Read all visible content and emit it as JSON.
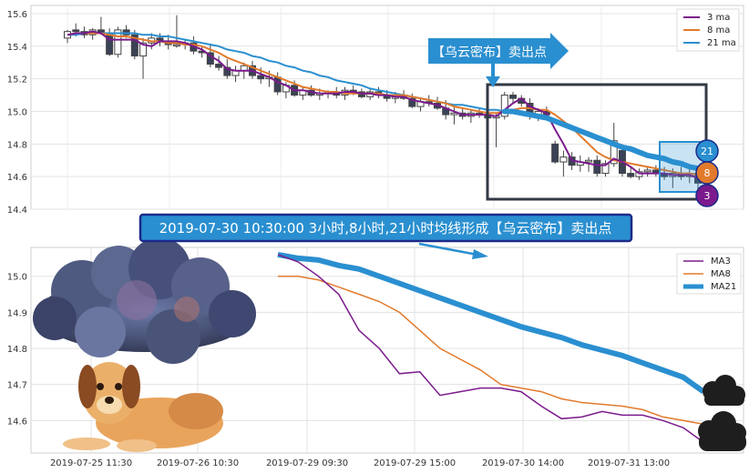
{
  "top_annotation": "【乌云密布】卖出点",
  "middle_banner": "2019-07-30 10:30:00 3小时,8小时,21小时均线形成【乌云密布】卖出点",
  "badges": [
    "21",
    "8",
    "3"
  ],
  "colors": {
    "ma3": "#7b1a8c",
    "ma8": "#e27a2c",
    "ma21": "#2a8fd0",
    "candle_down": "#3a4256",
    "banner_bg": "#2a8fd0",
    "banner_border": "#1b2a8a",
    "box": "#333a44"
  },
  "icons": [
    "dark-cloud-illustration",
    "dog-illustration",
    "small-black-cloud-icon",
    "small-black-cloud-icon"
  ],
  "chart_data": [
    {
      "type": "candlestick",
      "ylim": [
        14.4,
        15.65
      ],
      "yticks": [
        14.4,
        14.6,
        14.8,
        15.0,
        15.2,
        15.4,
        15.6
      ],
      "grid": true,
      "legend_position": "top-right",
      "legend": [
        "3 ma",
        "8 ma",
        "21 ma"
      ],
      "ohlc": [
        [
          15.45,
          15.5,
          15.42,
          15.49
        ],
        [
          15.5,
          15.54,
          15.46,
          15.49
        ],
        [
          15.49,
          15.52,
          15.45,
          15.47
        ],
        [
          15.47,
          15.51,
          15.44,
          15.5
        ],
        [
          15.5,
          15.58,
          15.47,
          15.48
        ],
        [
          15.48,
          15.51,
          15.34,
          15.35
        ],
        [
          15.35,
          15.52,
          15.33,
          15.5
        ],
        [
          15.5,
          15.53,
          15.45,
          15.47
        ],
        [
          15.47,
          15.5,
          15.32,
          15.34
        ],
        [
          15.34,
          15.45,
          15.2,
          15.42
        ],
        [
          15.42,
          15.48,
          15.38,
          15.45
        ],
        [
          15.45,
          15.48,
          15.4,
          15.43
        ],
        [
          15.43,
          15.47,
          15.38,
          15.41
        ],
        [
          15.41,
          15.59,
          15.39,
          15.41
        ],
        [
          15.41,
          15.44,
          15.38,
          15.42
        ],
        [
          15.42,
          15.46,
          15.35,
          15.37
        ],
        [
          15.37,
          15.4,
          15.33,
          15.36
        ],
        [
          15.36,
          15.41,
          15.27,
          15.29
        ],
        [
          15.29,
          15.34,
          15.25,
          15.27
        ],
        [
          15.27,
          15.32,
          15.2,
          15.22
        ],
        [
          15.22,
          15.28,
          15.18,
          15.25
        ],
        [
          15.25,
          15.3,
          15.2,
          15.28
        ],
        [
          15.28,
          15.31,
          15.2,
          15.22
        ],
        [
          15.22,
          15.27,
          15.17,
          15.2
        ],
        [
          15.2,
          15.25,
          15.15,
          15.21
        ],
        [
          15.21,
          15.24,
          15.1,
          15.12
        ],
        [
          15.12,
          15.18,
          15.08,
          15.16
        ],
        [
          15.16,
          15.19,
          15.09,
          15.1
        ],
        [
          15.1,
          15.15,
          15.07,
          15.13
        ],
        [
          15.13,
          15.16,
          15.09,
          15.1
        ],
        [
          15.1,
          15.14,
          15.07,
          15.11
        ],
        [
          15.11,
          15.13,
          15.08,
          15.12
        ],
        [
          15.12,
          15.15,
          15.08,
          15.1
        ],
        [
          15.1,
          15.15,
          15.07,
          15.13
        ],
        [
          15.13,
          15.16,
          15.1,
          15.12
        ],
        [
          15.12,
          15.14,
          15.08,
          15.09
        ],
        [
          15.09,
          15.14,
          15.07,
          15.12
        ],
        [
          15.12,
          15.15,
          15.08,
          15.1
        ],
        [
          15.1,
          15.13,
          15.06,
          15.08
        ],
        [
          15.08,
          15.12,
          15.05,
          15.1
        ],
        [
          15.1,
          15.13,
          15.07,
          15.08
        ],
        [
          15.08,
          15.11,
          15.02,
          15.03
        ],
        [
          15.03,
          15.08,
          15.0,
          15.06
        ],
        [
          15.06,
          15.1,
          15.03,
          15.05
        ],
        [
          15.05,
          15.09,
          15.01,
          15.02
        ],
        [
          15.02,
          15.07,
          14.95,
          14.98
        ],
        [
          14.98,
          15.03,
          14.92,
          14.99
        ],
        [
          14.99,
          15.02,
          14.95,
          14.97
        ],
        [
          14.97,
          15.01,
          14.93,
          14.99
        ],
        [
          14.99,
          15.02,
          14.96,
          14.98
        ],
        [
          14.98,
          15.0,
          14.94,
          14.96
        ],
        [
          14.96,
          14.99,
          14.78,
          14.97
        ],
        [
          14.97,
          15.12,
          14.95,
          15.1
        ],
        [
          15.1,
          15.12,
          15.05,
          15.08
        ],
        [
          15.08,
          15.1,
          15.03,
          15.05
        ],
        [
          15.05,
          15.08,
          14.95,
          14.97
        ],
        [
          14.97,
          15.02,
          14.94,
          15.0
        ],
        [
          15.0,
          15.03,
          14.96,
          14.98
        ],
        [
          14.8,
          14.82,
          14.68,
          14.69
        ],
        [
          14.69,
          14.76,
          14.6,
          14.72
        ],
        [
          14.72,
          14.75,
          14.64,
          14.67
        ],
        [
          14.67,
          14.73,
          14.63,
          14.69
        ],
        [
          14.69,
          14.72,
          14.63,
          14.7
        ],
        [
          14.7,
          14.73,
          14.6,
          14.62
        ],
        [
          14.62,
          14.7,
          14.6,
          14.68
        ],
        [
          14.68,
          14.93,
          14.66,
          14.82
        ],
        [
          14.76,
          14.8,
          14.6,
          14.62
        ],
        [
          14.62,
          14.66,
          14.59,
          14.6
        ],
        [
          14.6,
          14.65,
          14.58,
          14.63
        ],
        [
          14.63,
          14.66,
          14.6,
          14.64
        ],
        [
          14.64,
          14.67,
          14.6,
          14.62
        ],
        [
          14.62,
          14.66,
          14.58,
          14.6
        ],
        [
          14.6,
          14.65,
          14.53,
          14.62
        ],
        [
          14.62,
          14.66,
          14.58,
          14.6
        ],
        [
          14.6,
          14.66,
          14.56,
          14.62
        ],
        [
          14.62,
          14.64,
          14.52,
          14.56
        ]
      ],
      "ma3": [
        15.47,
        15.48,
        15.48,
        15.49,
        15.48,
        15.44,
        15.44,
        15.44,
        15.44,
        15.41,
        15.4,
        15.43,
        15.43,
        15.43,
        15.42,
        15.4,
        15.38,
        15.34,
        15.31,
        15.26,
        15.25,
        15.25,
        15.25,
        15.23,
        15.21,
        15.18,
        15.16,
        15.13,
        15.13,
        15.12,
        15.11,
        15.11,
        15.11,
        15.12,
        15.12,
        15.11,
        15.11,
        15.1,
        15.1,
        15.09,
        15.09,
        15.07,
        15.06,
        15.05,
        15.04,
        15.02,
        15.0,
        14.98,
        14.98,
        14.98,
        14.98,
        14.97,
        15.01,
        15.05,
        15.08,
        15.03,
        15.01,
        14.99,
        14.89,
        14.8,
        14.7,
        14.69,
        14.68,
        14.67,
        14.67,
        14.71,
        14.69,
        14.66,
        14.62,
        14.62,
        14.62,
        14.62,
        14.61,
        14.61,
        14.61,
        14.59
      ],
      "ma8": [
        15.47,
        15.48,
        15.48,
        15.48,
        15.48,
        15.47,
        15.46,
        15.46,
        15.45,
        15.44,
        15.43,
        15.43,
        15.42,
        15.42,
        15.41,
        15.41,
        15.4,
        15.38,
        15.36,
        15.33,
        15.31,
        15.29,
        15.27,
        15.25,
        15.23,
        15.21,
        15.19,
        15.17,
        15.15,
        15.14,
        15.13,
        15.12,
        15.12,
        15.11,
        15.11,
        15.11,
        15.11,
        15.11,
        15.1,
        15.1,
        15.1,
        15.09,
        15.08,
        15.07,
        15.06,
        15.05,
        15.03,
        15.02,
        15.01,
        15.0,
        14.99,
        14.99,
        15.0,
        15.01,
        15.02,
        15.02,
        15.01,
        15.01,
        14.98,
        14.94,
        14.9,
        14.85,
        14.8,
        14.75,
        14.72,
        14.7,
        14.69,
        14.68,
        14.67,
        14.66,
        14.65,
        14.64,
        14.63,
        14.62,
        14.62,
        14.61
      ],
      "ma21": [
        15.47,
        15.47,
        15.48,
        15.48,
        15.48,
        15.48,
        15.48,
        15.48,
        15.48,
        15.47,
        15.47,
        15.46,
        15.46,
        15.45,
        15.44,
        15.43,
        15.42,
        15.41,
        15.4,
        15.38,
        15.37,
        15.36,
        15.34,
        15.33,
        15.31,
        15.3,
        15.28,
        15.27,
        15.25,
        15.24,
        15.22,
        15.21,
        15.19,
        15.18,
        15.17,
        15.16,
        15.14,
        15.13,
        15.12,
        15.11,
        15.1,
        15.09,
        15.08,
        15.07,
        15.06,
        15.05,
        15.04,
        15.04,
        15.03,
        15.02,
        15.01,
        15.01,
        15.0,
        15.0,
        14.99,
        14.98,
        14.97,
        14.96,
        14.94,
        14.92,
        14.9,
        14.88,
        14.86,
        14.84,
        14.82,
        14.8,
        14.78,
        14.77,
        14.75,
        14.73,
        14.72,
        14.71,
        14.69,
        14.68,
        14.66,
        14.65
      ]
    },
    {
      "type": "line",
      "ylim": [
        14.51,
        15.08
      ],
      "yticks": [
        14.6,
        14.7,
        14.8,
        14.9,
        15.0
      ],
      "x_tick_labels": [
        "2019-07-25 11:30",
        "2019-07-26 10:30",
        "2019-07-29 09:30",
        "2019-07-29 15:00",
        "2019-07-30 14:00",
        "2019-07-31 13:00"
      ],
      "grid": true,
      "legend_position": "top-right",
      "series": [
        {
          "name": "MA3",
          "values": [
            15.06,
            15.04,
            15.0,
            14.95,
            14.85,
            14.8,
            14.73,
            14.735,
            14.67,
            14.68,
            14.69,
            14.69,
            14.68,
            14.64,
            14.605,
            14.61,
            14.625,
            14.615,
            14.615,
            14.6,
            14.58,
            14.54
          ]
        },
        {
          "name": "MA8",
          "values": [
            15.0,
            15.0,
            14.99,
            14.97,
            14.95,
            14.93,
            14.9,
            14.85,
            14.8,
            14.77,
            14.74,
            14.7,
            14.69,
            14.68,
            14.66,
            14.65,
            14.645,
            14.64,
            14.63,
            14.61,
            14.6,
            14.59
          ]
        },
        {
          "name": "MA21",
          "values": [
            15.06,
            15.05,
            15.045,
            15.03,
            15.02,
            15.0,
            14.98,
            14.96,
            14.94,
            14.92,
            14.9,
            14.88,
            14.86,
            14.845,
            14.83,
            14.81,
            14.795,
            14.78,
            14.76,
            14.74,
            14.72,
            14.68
          ]
        }
      ]
    }
  ]
}
